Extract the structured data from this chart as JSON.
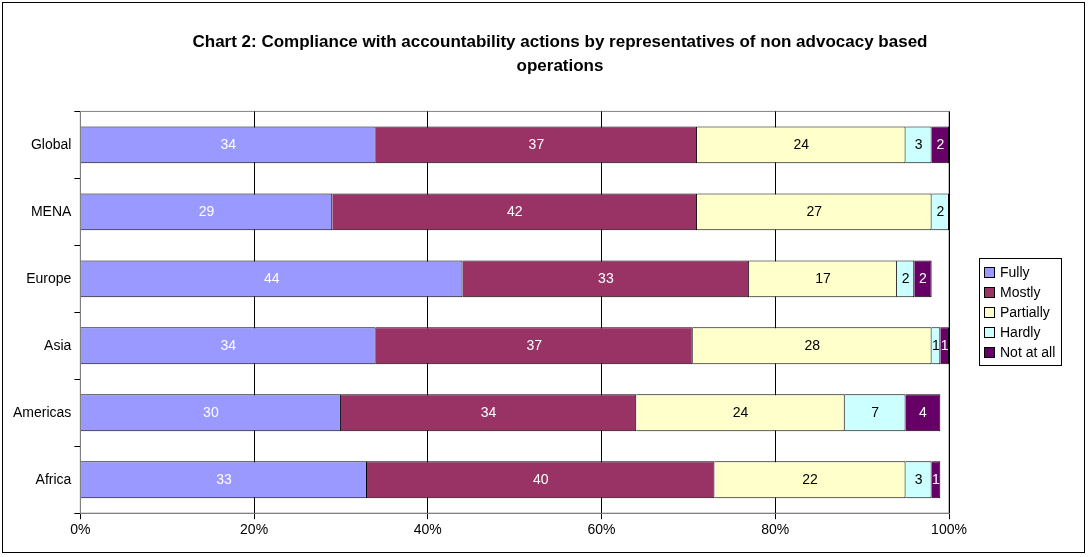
{
  "chart_data": {
    "type": "bar",
    "orientation": "horizontal",
    "stacked": true,
    "title": "Chart 2: Compliance with accountability actions by representatives of non advocacy based operations",
    "categories": [
      "Global",
      "MENA",
      "Europe",
      "Asia",
      "Americas",
      "Africa"
    ],
    "series": [
      {
        "name": "Fully",
        "color": "#9999ff",
        "values": [
          34,
          29,
          44,
          34,
          30,
          33
        ],
        "value_labels": [
          "34",
          "29",
          "44",
          "34",
          "30",
          "33"
        ]
      },
      {
        "name": "Mostly",
        "color": "#993366",
        "values": [
          37,
          42,
          33,
          36.5,
          34,
          40
        ],
        "value_labels": [
          "37",
          "42",
          "33",
          "37",
          "34",
          "40"
        ]
      },
      {
        "name": "Partially",
        "color": "#ffffcc",
        "values": [
          24,
          27,
          17,
          27.5,
          24,
          22
        ],
        "value_labels": [
          "24",
          "27",
          "17",
          "28",
          "24",
          "22"
        ]
      },
      {
        "name": "Hardly",
        "color": "#ccffff",
        "values": [
          3,
          2,
          2,
          1,
          7,
          3
        ],
        "value_labels": [
          "3",
          "2",
          "2",
          "1",
          "7",
          "3"
        ]
      },
      {
        "name": "Not at all",
        "color": "#660066",
        "values": [
          2,
          0,
          2,
          1,
          4,
          1
        ],
        "value_labels": [
          "2",
          null,
          "2",
          "1",
          "4",
          "1"
        ]
      }
    ],
    "xlim": [
      0,
      100
    ],
    "xticks": [
      {
        "value": 0,
        "label": "0%"
      },
      {
        "value": 20,
        "label": "20%"
      },
      {
        "value": 40,
        "label": "40%"
      },
      {
        "value": 60,
        "label": "60%"
      },
      {
        "value": 80,
        "label": "80%"
      },
      {
        "value": 100,
        "label": "100%"
      }
    ],
    "grid": "x",
    "legend": "right"
  }
}
